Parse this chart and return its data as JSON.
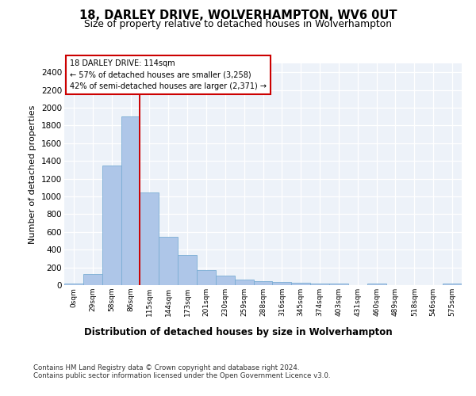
{
  "title1": "18, DARLEY DRIVE, WOLVERHAMPTON, WV6 0UT",
  "title2": "Size of property relative to detached houses in Wolverhampton",
  "xlabel": "Distribution of detached houses by size in Wolverhampton",
  "ylabel": "Number of detached properties",
  "bin_labels": [
    "0sqm",
    "29sqm",
    "58sqm",
    "86sqm",
    "115sqm",
    "144sqm",
    "173sqm",
    "201sqm",
    "230sqm",
    "259sqm",
    "288sqm",
    "316sqm",
    "345sqm",
    "374sqm",
    "403sqm",
    "431sqm",
    "460sqm",
    "489sqm",
    "518sqm",
    "546sqm",
    "575sqm"
  ],
  "bar_values": [
    20,
    125,
    1345,
    1900,
    1045,
    545,
    335,
    170,
    110,
    65,
    42,
    32,
    25,
    20,
    14,
    0,
    18,
    0,
    0,
    0,
    20
  ],
  "bar_color": "#aec6e8",
  "bar_edge_color": "#7aadd4",
  "vline_x": 4.0,
  "annotation_title": "18 DARLEY DRIVE: 114sqm",
  "annotation_line1": "← 57% of detached houses are smaller (3,258)",
  "annotation_line2": "42% of semi-detached houses are larger (2,371) →",
  "ylim": [
    0,
    2500
  ],
  "yticks": [
    0,
    200,
    400,
    600,
    800,
    1000,
    1200,
    1400,
    1600,
    1800,
    2000,
    2200,
    2400
  ],
  "footer1": "Contains HM Land Registry data © Crown copyright and database right 2024.",
  "footer2": "Contains public sector information licensed under the Open Government Licence v3.0.",
  "plot_bg_color": "#edf2f9"
}
